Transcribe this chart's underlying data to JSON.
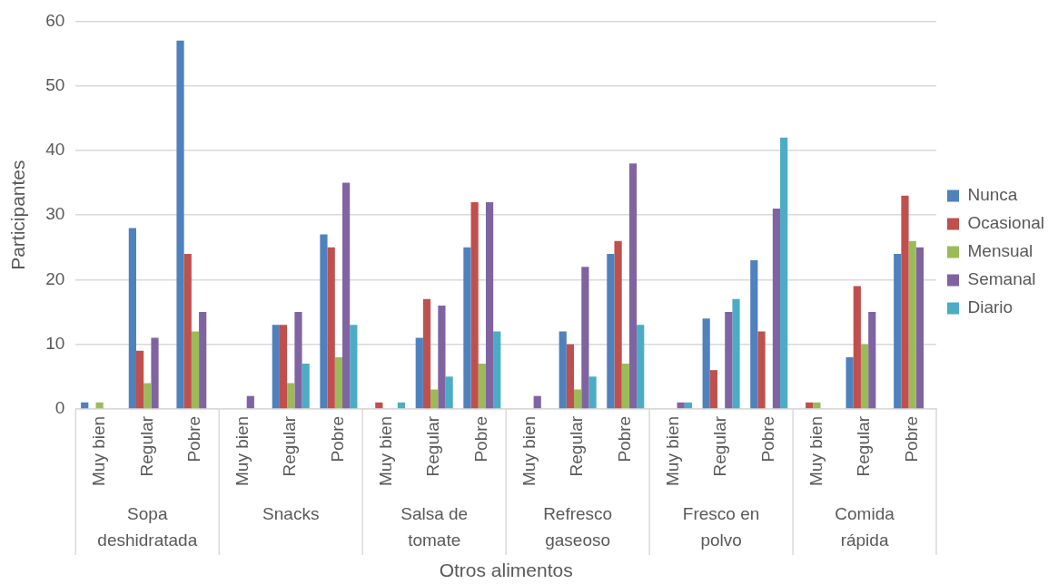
{
  "chart_data": {
    "type": "bar",
    "xlabel": "Otros alimentos",
    "ylabel": "Participantes",
    "categories": [
      "Muy bien",
      "Regular",
      "Pobre",
      "Muy bien",
      "Regular",
      "Pobre",
      "Muy bien",
      "Regular",
      "Pobre",
      "Muy bien",
      "Regular",
      "Pobre",
      "Muy bien",
      "Regular",
      "Pobre",
      "Muy bien",
      "Regular",
      "Pobre"
    ],
    "annotations": [
      "Sopa deshidratada",
      "Snacks",
      "Salsa de tomate",
      "Refresco gaseoso",
      "Fresco en polvo",
      "Comida rápida"
    ],
    "series": [
      {
        "name": "Nunca",
        "color": "#4f81bd",
        "values": [
          1,
          28,
          57,
          0,
          13,
          27,
          0,
          11,
          25,
          0,
          12,
          24,
          0,
          14,
          23,
          0,
          8,
          24
        ]
      },
      {
        "name": "Ocasional",
        "color": "#c0504d",
        "values": [
          0,
          9,
          24,
          0,
          13,
          25,
          1,
          17,
          32,
          0,
          10,
          26,
          0,
          6,
          12,
          1,
          19,
          33
        ]
      },
      {
        "name": "Mensual",
        "color": "#9bbb59",
        "values": [
          1,
          4,
          12,
          0,
          4,
          8,
          0,
          3,
          7,
          0,
          3,
          7,
          0,
          0,
          0,
          1,
          10,
          26
        ]
      },
      {
        "name": "Semanal",
        "color": "#8064a2",
        "values": [
          0,
          11,
          15,
          2,
          15,
          35,
          0,
          16,
          32,
          2,
          22,
          38,
          1,
          15,
          31,
          0,
          15,
          25
        ]
      },
      {
        "name": "Diario",
        "color": "#4bacc6",
        "values": [
          0,
          0,
          0,
          0,
          7,
          13,
          1,
          5,
          12,
          0,
          5,
          13,
          1,
          17,
          42,
          0,
          0,
          0
        ]
      }
    ],
    "ylim": [
      0,
      60
    ],
    "yticks": [
      0,
      10,
      20,
      30,
      40,
      50,
      60
    ],
    "grid": "y",
    "legend": "right"
  }
}
